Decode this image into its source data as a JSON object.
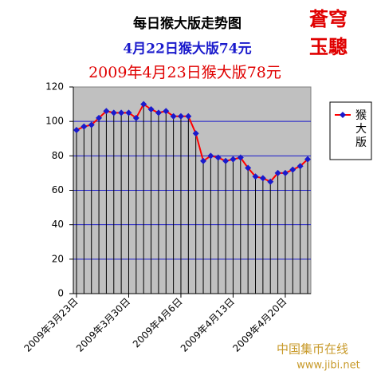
{
  "chart_data": {
    "type": "line",
    "title": "每日猴大版走势图",
    "subtitle": "4月22日猴大版74元",
    "subtitle2": "2009年4月23日猴大版78元",
    "side_text": [
      "蒼穹",
      "玉驄"
    ],
    "watermark": [
      "中国集币在线",
      "www.jibi.net"
    ],
    "categories": [
      "2009年3月23日",
      null,
      null,
      null,
      null,
      null,
      null,
      "2009年3月30日",
      null,
      null,
      null,
      null,
      null,
      null,
      "2009年4月6日",
      null,
      null,
      null,
      null,
      null,
      null,
      "2009年4月13日",
      null,
      null,
      null,
      null,
      null,
      null,
      "2009年4月20日",
      null,
      null,
      null
    ],
    "series": [
      {
        "name": "猴大版",
        "color": "#ff0000",
        "marker_color": "#1a1acc",
        "values": [
          95,
          97,
          98,
          102,
          106,
          105,
          105,
          105,
          102,
          110,
          107,
          105,
          106,
          103,
          103,
          103,
          93,
          77,
          80,
          79,
          77,
          78,
          79,
          73,
          68,
          67,
          65,
          70,
          70,
          72,
          74,
          78
        ]
      }
    ],
    "ylim": [
      0,
      120
    ],
    "yticks": [
      0,
      20,
      40,
      60,
      80,
      100,
      120
    ],
    "grid": true,
    "legend": "right"
  }
}
